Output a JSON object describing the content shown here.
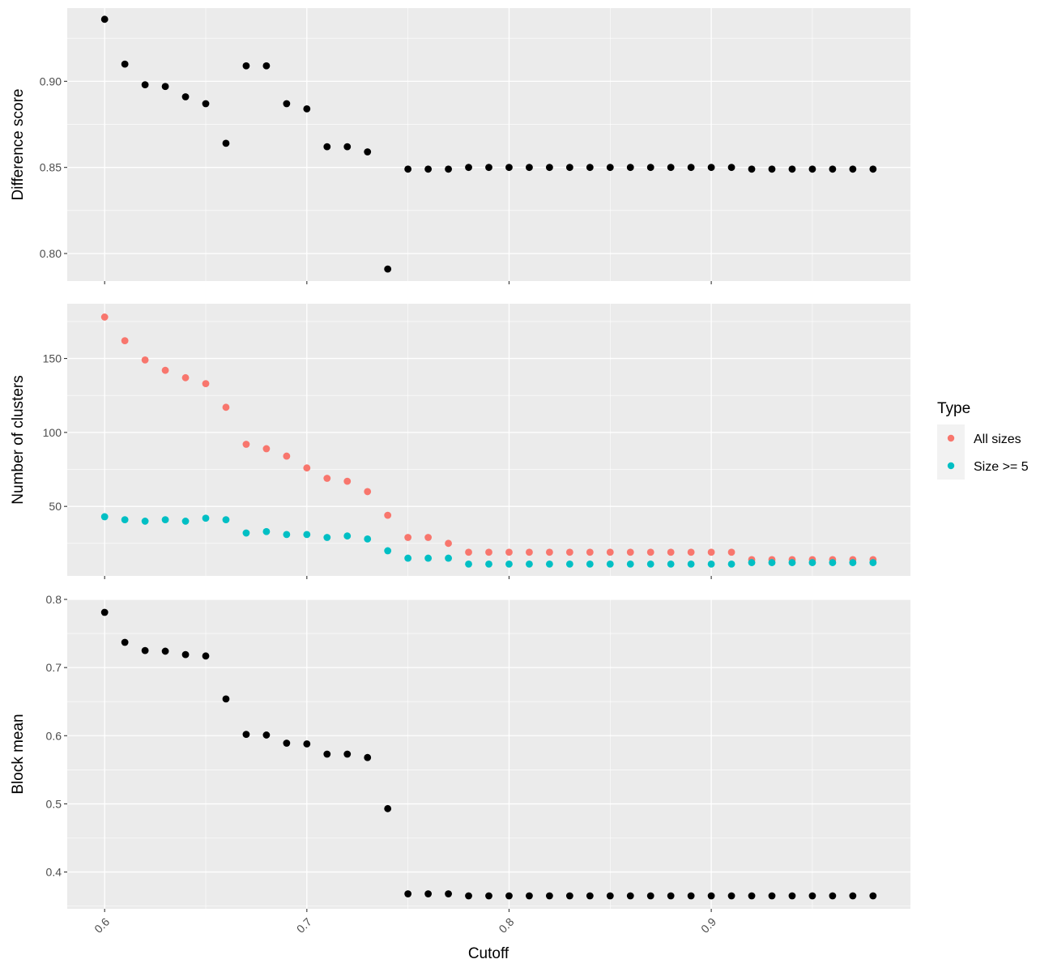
{
  "chart_data": [
    {
      "type": "scatter",
      "ylabel": "Difference score",
      "xlim": [
        0.5815,
        0.9985
      ],
      "ylim": [
        0.784,
        0.9425
      ],
      "y_ticks": [
        "0.80",
        "0.85",
        "0.90"
      ],
      "x": [
        0.6,
        0.61,
        0.62,
        0.63,
        0.64,
        0.65,
        0.66,
        0.67,
        0.68,
        0.69,
        0.7,
        0.71,
        0.72,
        0.73,
        0.74,
        0.75,
        0.76,
        0.77,
        0.78,
        0.79,
        0.8,
        0.81,
        0.82,
        0.83,
        0.84,
        0.85,
        0.86,
        0.87,
        0.88,
        0.89,
        0.9,
        0.91,
        0.92,
        0.93,
        0.94,
        0.95,
        0.96,
        0.97,
        0.98
      ],
      "series": [
        {
          "color": "#000000",
          "values": [
            0.936,
            0.91,
            0.898,
            0.897,
            0.891,
            0.887,
            0.864,
            0.909,
            0.909,
            0.887,
            0.884,
            0.862,
            0.862,
            0.859,
            0.791,
            0.849,
            0.849,
            0.849,
            0.85,
            0.85,
            0.85,
            0.85,
            0.85,
            0.85,
            0.85,
            0.85,
            0.85,
            0.85,
            0.85,
            0.85,
            0.85,
            0.85,
            0.849,
            0.849,
            0.849,
            0.849,
            0.849,
            0.849,
            0.849
          ]
        }
      ]
    },
    {
      "type": "scatter",
      "ylabel": "Number of clusters",
      "xlim": [
        0.5815,
        0.9985
      ],
      "ylim": [
        3,
        187
      ],
      "y_ticks": [
        "50",
        "100",
        "150"
      ],
      "x": [
        0.6,
        0.61,
        0.62,
        0.63,
        0.64,
        0.65,
        0.66,
        0.67,
        0.68,
        0.69,
        0.7,
        0.71,
        0.72,
        0.73,
        0.74,
        0.75,
        0.76,
        0.77,
        0.78,
        0.79,
        0.8,
        0.81,
        0.82,
        0.83,
        0.84,
        0.85,
        0.86,
        0.87,
        0.88,
        0.89,
        0.9,
        0.91,
        0.92,
        0.93,
        0.94,
        0.95,
        0.96,
        0.97,
        0.98
      ],
      "series": [
        {
          "name": "All sizes",
          "color": "#F8766D",
          "values": [
            178,
            162,
            149,
            142,
            137,
            133,
            117,
            92,
            89,
            84,
            76,
            69,
            67,
            60,
            44,
            29,
            29,
            25,
            19,
            19,
            19,
            19,
            19,
            19,
            19,
            19,
            19,
            19,
            19,
            19,
            19,
            19,
            14,
            14,
            14,
            14,
            14,
            14,
            14
          ]
        },
        {
          "name": "Size >= 5",
          "color": "#00BFC4",
          "values": [
            43,
            41,
            40,
            41,
            40,
            42,
            41,
            32,
            33,
            31,
            31,
            29,
            30,
            28,
            20,
            15,
            15,
            15,
            11,
            11,
            11,
            11,
            11,
            11,
            11,
            11,
            11,
            11,
            11,
            11,
            11,
            11,
            12,
            12,
            12,
            12,
            12,
            12,
            12
          ]
        }
      ]
    },
    {
      "type": "scatter",
      "ylabel": "Block mean",
      "xlabel": "Cutoff",
      "xlim": [
        0.5815,
        0.9985
      ],
      "ylim": [
        0.346,
        0.8
      ],
      "y_ticks": [
        "0.4",
        "0.5",
        "0.6",
        "0.7",
        "0.8"
      ],
      "x_ticks": [
        "0.6",
        "0.7",
        "0.8",
        "0.9"
      ],
      "x": [
        0.6,
        0.61,
        0.62,
        0.63,
        0.64,
        0.65,
        0.66,
        0.67,
        0.68,
        0.69,
        0.7,
        0.71,
        0.72,
        0.73,
        0.74,
        0.75,
        0.76,
        0.77,
        0.78,
        0.79,
        0.8,
        0.81,
        0.82,
        0.83,
        0.84,
        0.85,
        0.86,
        0.87,
        0.88,
        0.89,
        0.9,
        0.91,
        0.92,
        0.93,
        0.94,
        0.95,
        0.96,
        0.97,
        0.98
      ],
      "series": [
        {
          "color": "#000000",
          "values": [
            0.781,
            0.737,
            0.725,
            0.724,
            0.719,
            0.717,
            0.654,
            0.602,
            0.601,
            0.589,
            0.588,
            0.573,
            0.573,
            0.568,
            0.493,
            0.368,
            0.368,
            0.368,
            0.365,
            0.365,
            0.365,
            0.365,
            0.365,
            0.365,
            0.365,
            0.365,
            0.365,
            0.365,
            0.365,
            0.365,
            0.365,
            0.365,
            0.365,
            0.365,
            0.365,
            0.365,
            0.365,
            0.365,
            0.365
          ]
        }
      ]
    }
  ],
  "legend": {
    "title": "Type",
    "placement": "right",
    "items": [
      {
        "label": "All sizes",
        "color": "#F8766D"
      },
      {
        "label": "Size >= 5",
        "color": "#00BFC4"
      }
    ]
  },
  "panel_background": "#EBEBEB",
  "grid_color": "#FFFFFF",
  "grid": true
}
